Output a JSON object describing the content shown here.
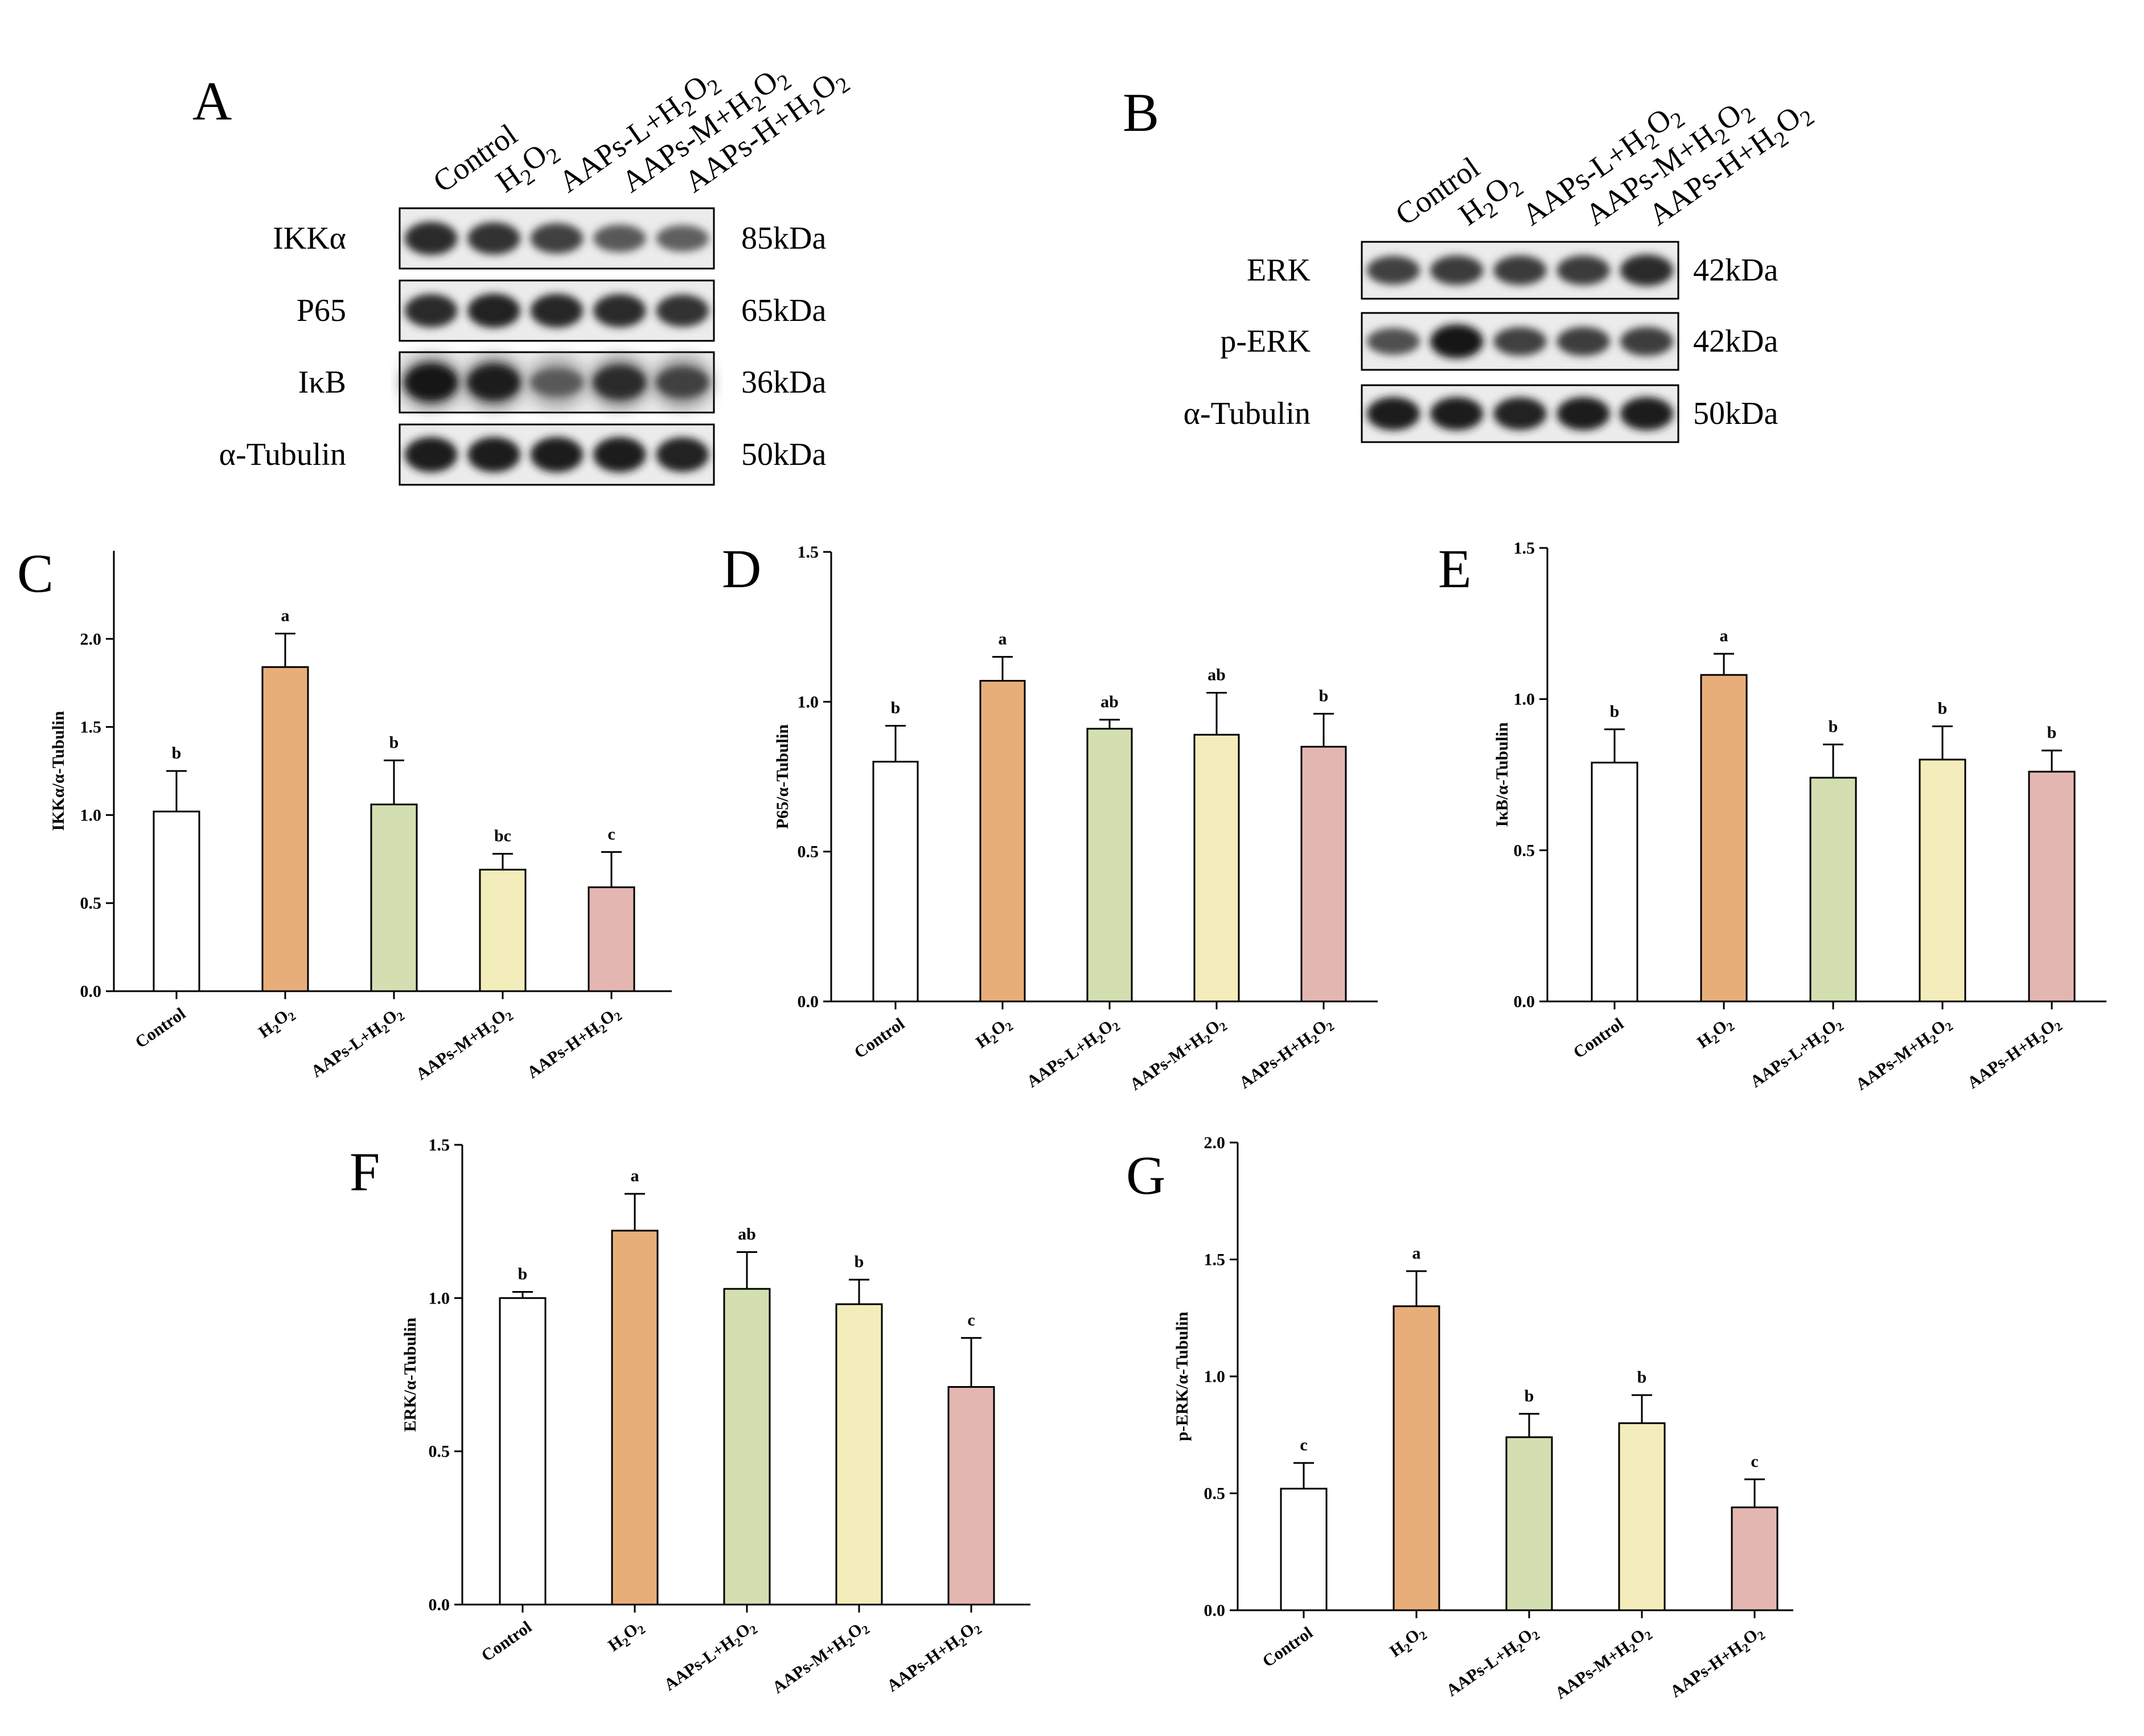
{
  "colors": {
    "control": "#ffffff",
    "h2o2": "#E8AE7A",
    "aaps_l": "#D3DFB1",
    "aaps_m": "#F2EDBA",
    "aaps_h": "#E4B6B1",
    "stroke": "#000000"
  },
  "blots": {
    "A": {
      "letter": "A",
      "lanes": [
        "Control",
        "H2O2",
        "AAPs-L+H2O2",
        "AAPs-M+H2O2",
        "AAPs-H+H2O2"
      ],
      "rows": [
        {
          "protein": "IKKα",
          "kda": "85kDa",
          "intensity": [
            0.85,
            0.8,
            0.7,
            0.55,
            0.5
          ],
          "smear": 0.25
        },
        {
          "protein": "P65",
          "kda": "65kDa",
          "intensity": [
            0.85,
            0.9,
            0.88,
            0.85,
            0.8
          ],
          "smear": 0.2
        },
        {
          "protein": "IκB",
          "kda": "36kDa",
          "intensity": [
            1.0,
            0.95,
            0.55,
            0.85,
            0.7
          ],
          "smear": 0.7
        },
        {
          "protein": "α-Tubulin",
          "kda": "50kDa",
          "intensity": [
            0.95,
            0.95,
            0.95,
            0.95,
            0.92
          ],
          "smear": 0.25
        }
      ]
    },
    "B": {
      "letter": "B",
      "lanes": [
        "Control",
        "H2O2",
        "AAPs-L+H2O2",
        "AAPs-M+H2O2",
        "AAPs-H+H2O2"
      ],
      "rows": [
        {
          "protein": "ERK",
          "kda": "42kDa",
          "intensity": [
            0.7,
            0.75,
            0.75,
            0.75,
            0.85
          ],
          "smear": 0.2
        },
        {
          "protein": "p-ERK",
          "kda": "42kDa",
          "intensity": [
            0.6,
            1.0,
            0.7,
            0.72,
            0.72
          ],
          "smear": 0.15
        },
        {
          "protein": "α-Tubulin",
          "kda": "50kDa",
          "intensity": [
            0.95,
            0.95,
            0.92,
            0.95,
            0.95
          ],
          "smear": 0.2
        }
      ]
    }
  },
  "chart_data": [
    {
      "panel": "C",
      "type": "bar",
      "categories": [
        "Control",
        "H2O2",
        "AAPs-L+H2O2",
        "AAPs-M+H2O2",
        "AAPs-H+H2O2"
      ],
      "values": [
        1.02,
        1.84,
        1.06,
        0.69,
        0.59
      ],
      "errors": [
        0.23,
        0.19,
        0.25,
        0.09,
        0.2
      ],
      "labels": [
        "b",
        "a",
        "b",
        "bc",
        "c"
      ],
      "ylabel": "IKKα/α-Tubulin",
      "ylim": [
        0,
        2.5
      ],
      "yticks": [
        "0.0",
        "0.5",
        "1.0",
        "1.5",
        "2.0"
      ]
    },
    {
      "panel": "D",
      "type": "bar",
      "categories": [
        "Control",
        "H2O2",
        "AAPs-L+H2O2",
        "AAPs-M+H2O2",
        "AAPs-H+H2O2"
      ],
      "values": [
        0.8,
        1.07,
        0.91,
        0.89,
        0.85
      ],
      "errors": [
        0.12,
        0.08,
        0.03,
        0.14,
        0.11
      ],
      "labels": [
        "b",
        "a",
        "ab",
        "ab",
        "b"
      ],
      "ylabel": "P65/α-Tubulin",
      "ylim": [
        0,
        1.5
      ],
      "yticks": [
        "0.0",
        "0.5",
        "1.0",
        "1.5"
      ]
    },
    {
      "panel": "E",
      "type": "bar",
      "categories": [
        "Control",
        "H2O2",
        "AAPs-L+H2O2",
        "AAPs-M+H2O2",
        "AAPs-H+H2O2"
      ],
      "values": [
        0.79,
        1.08,
        0.74,
        0.8,
        0.76
      ],
      "errors": [
        0.11,
        0.07,
        0.11,
        0.11,
        0.07
      ],
      "labels": [
        "b",
        "a",
        "b",
        "b",
        "b"
      ],
      "ylabel": "IκB/α-Tubulin",
      "ylim": [
        0,
        1.5
      ],
      "yticks": [
        "0.0",
        "0.5",
        "1.0",
        "1.5"
      ]
    },
    {
      "panel": "F",
      "type": "bar",
      "categories": [
        "Control",
        "H2O2",
        "AAPs-L+H2O2",
        "AAPs-M+H2O2",
        "AAPs-H+H2O2"
      ],
      "values": [
        1.0,
        1.22,
        1.03,
        0.98,
        0.71
      ],
      "errors": [
        0.02,
        0.12,
        0.12,
        0.08,
        0.16
      ],
      "labels": [
        "b",
        "a",
        "ab",
        "b",
        "c"
      ],
      "ylabel": "ERK/α-Tubulin",
      "ylim": [
        0,
        1.5
      ],
      "yticks": [
        "0.0",
        "0.5",
        "1.0",
        "1.5"
      ]
    },
    {
      "panel": "G",
      "type": "bar",
      "categories": [
        "Control",
        "H2O2",
        "AAPs-L+H2O2",
        "AAPs-M+H2O2",
        "AAPs-H+H2O2"
      ],
      "values": [
        0.52,
        1.3,
        0.74,
        0.8,
        0.44
      ],
      "errors": [
        0.11,
        0.15,
        0.1,
        0.12,
        0.12
      ],
      "labels": [
        "c",
        "a",
        "b",
        "b",
        "c"
      ],
      "ylabel": "p-ERK/α-Tubulin",
      "ylim": [
        0,
        2.0
      ],
      "yticks": [
        "0.0",
        "0.5",
        "1.0",
        "1.5",
        "2.0"
      ]
    }
  ]
}
